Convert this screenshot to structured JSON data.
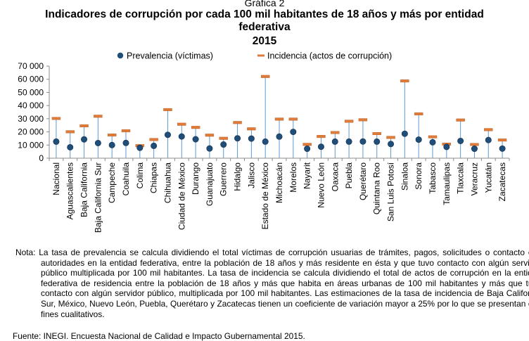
{
  "figure": {
    "kicker": "Gráfica 2",
    "title": "Indicadores de corrupción por cada 100 mil habitantes de 18 años y más por entidad federativa",
    "year": "2015"
  },
  "chart_data": {
    "type": "scatter",
    "categories": [
      "Nacional",
      "Aguascalientes",
      "Baja California",
      "Baja California Sur",
      "Campeche",
      "Coahuila",
      "Colima",
      "Chiapas",
      "Chihuahua",
      "Ciudad de México",
      "Durango",
      "Guanajuato",
      "Guerrero",
      "Hidalgo",
      "Jalisco",
      "Estado de México",
      "Michoacán",
      "Morelos",
      "Nayarit",
      "Nuevo León",
      "Oaxaca",
      "Puebla",
      "Querétaro",
      "Quintana Roo",
      "San Luis Potosí",
      "Sinaloa",
      "Sonora",
      "Tabasco",
      "Tamaulipas",
      "Tlaxcala",
      "Veracruz",
      "Yucatán",
      "Zacatecas"
    ],
    "series": [
      {
        "name": "Prevalencia (víctimas)",
        "marker": "circle",
        "color": "#1f4e79",
        "values": [
          12600,
          8300,
          14300,
          11500,
          10000,
          11600,
          7900,
          9400,
          17800,
          16500,
          14400,
          7400,
          10400,
          15100,
          14900,
          12600,
          16400,
          20000,
          7200,
          8700,
          12600,
          12600,
          12700,
          12600,
          10800,
          18600,
          14100,
          12100,
          8600,
          13100,
          7200,
          13800,
          7300
        ]
      },
      {
        "name": "Incidencia (actos de corrupción)",
        "marker": "dash",
        "color": "#e07b39",
        "values": [
          30100,
          20000,
          24500,
          31800,
          17500,
          20700,
          9400,
          14100,
          36800,
          25700,
          23300,
          17400,
          15000,
          27000,
          22200,
          62000,
          29600,
          29600,
          10400,
          16400,
          19400,
          28000,
          29100,
          18600,
          15700,
          58600,
          33600,
          16100,
          10600,
          28900,
          10300,
          21600,
          13700
        ]
      }
    ],
    "ylim": [
      0,
      70000
    ],
    "yticks": [
      "0",
      "10 000",
      "20 000",
      "30 000",
      "40 000",
      "50 000",
      "60 000",
      "70 000"
    ],
    "grid": false,
    "legend_position": "top"
  },
  "note": "Nota: La tasa de prevalencia se calcula dividiendo el total víctimas de corrupción usuarias de trámites, pagos, solicitudes o contacto con autoridades en la entidad federativa, entre la población de 18 años y más residente en ésta y que tuvo contacto con algún servidor público multiplicada por 100 mil habitantes. La tasa de incidencia se calcula dividiendo el total de actos de corrupción en la entidad federativa de residencia entre la población de 18 años y más que habita en áreas urbanas de 100 mil habitantes y más que tuvo contacto con algún servidor público, multiplicada por 100 mil habitantes. Las estimaciones de la tasa de incidencia de Baja California Sur, México, Nuevo León, Puebla, Querétaro y Zacatecas tienen un coeficiente de variación mayor a 25% por lo que se presentan con fines cualitativos.",
  "source": "Fuente: INEGI. Encuesta Nacional de Calidad e Impacto Gubernamental 2015."
}
